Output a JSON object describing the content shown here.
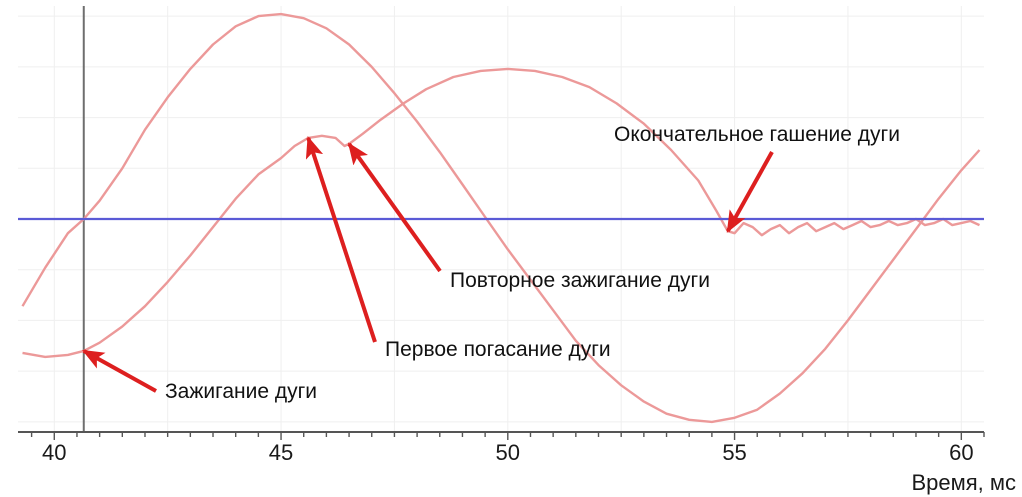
{
  "chart_data": {
    "type": "line",
    "xlabel": "Время, мс",
    "ylabel": "",
    "xlim": [
      39.2,
      60.5
    ],
    "ylim": [
      -1.05,
      1.05
    ],
    "xticks": [
      40,
      45,
      50,
      55,
      60
    ],
    "grid": true,
    "zero_line": {
      "y": 0,
      "color": "#5a5ad6"
    },
    "marker_line": {
      "x": 40.65,
      "color": "#6e6e6e"
    },
    "series": [
      {
        "color": "#ec9999",
        "points": [
          [
            39.3,
            -0.43
          ],
          [
            39.8,
            -0.24
          ],
          [
            40.3,
            -0.07
          ],
          [
            40.65,
            0.0
          ],
          [
            41.0,
            0.09
          ],
          [
            41.5,
            0.25
          ],
          [
            42.0,
            0.44
          ],
          [
            42.5,
            0.6
          ],
          [
            43.0,
            0.74
          ],
          [
            43.5,
            0.86
          ],
          [
            44.0,
            0.95
          ],
          [
            44.5,
            1.0
          ],
          [
            45.0,
            1.01
          ],
          [
            45.5,
            0.99
          ],
          [
            46.0,
            0.94
          ],
          [
            46.5,
            0.86
          ],
          [
            47.0,
            0.75
          ],
          [
            47.5,
            0.62
          ],
          [
            48.0,
            0.48
          ],
          [
            48.5,
            0.33
          ],
          [
            49.0,
            0.17
          ],
          [
            49.5,
            0.01
          ],
          [
            50.0,
            -0.15
          ],
          [
            50.5,
            -0.3
          ],
          [
            51.0,
            -0.45
          ],
          [
            51.5,
            -0.6
          ],
          [
            52.0,
            -0.72
          ],
          [
            52.5,
            -0.82
          ],
          [
            53.0,
            -0.9
          ],
          [
            53.5,
            -0.96
          ],
          [
            54.0,
            -0.99
          ],
          [
            54.5,
            -1.0
          ],
          [
            55.0,
            -0.98
          ],
          [
            55.5,
            -0.94
          ],
          [
            56.0,
            -0.86
          ],
          [
            56.5,
            -0.76
          ],
          [
            57.0,
            -0.64
          ],
          [
            57.5,
            -0.5
          ],
          [
            58.0,
            -0.35
          ],
          [
            58.5,
            -0.2
          ],
          [
            59.0,
            -0.05
          ],
          [
            59.5,
            0.1
          ],
          [
            60.0,
            0.24
          ],
          [
            60.4,
            0.34
          ]
        ]
      },
      {
        "color": "#ec9999",
        "points": [
          [
            39.3,
            -0.66
          ],
          [
            39.8,
            -0.68
          ],
          [
            40.3,
            -0.67
          ],
          [
            40.65,
            -0.65
          ],
          [
            41.0,
            -0.61
          ],
          [
            41.5,
            -0.53
          ],
          [
            42.0,
            -0.43
          ],
          [
            42.5,
            -0.31
          ],
          [
            43.0,
            -0.18
          ],
          [
            43.5,
            -0.04
          ],
          [
            44.0,
            0.1
          ],
          [
            44.5,
            0.22
          ],
          [
            45.0,
            0.3
          ],
          [
            45.3,
            0.36
          ],
          [
            45.6,
            0.4
          ],
          [
            45.9,
            0.41
          ],
          [
            46.2,
            0.4
          ],
          [
            46.4,
            0.36
          ],
          [
            46.5,
            0.37
          ],
          [
            46.8,
            0.42
          ],
          [
            47.2,
            0.49
          ],
          [
            47.7,
            0.57
          ],
          [
            48.2,
            0.64
          ],
          [
            48.8,
            0.7
          ],
          [
            49.4,
            0.73
          ],
          [
            50.0,
            0.74
          ],
          [
            50.6,
            0.73
          ],
          [
            51.2,
            0.7
          ],
          [
            51.8,
            0.65
          ],
          [
            52.4,
            0.57
          ],
          [
            53.0,
            0.47
          ],
          [
            53.6,
            0.34
          ],
          [
            54.2,
            0.19
          ],
          [
            54.6,
            0.04
          ],
          [
            54.85,
            -0.06
          ],
          [
            55.0,
            -0.07
          ],
          [
            55.2,
            -0.02
          ],
          [
            55.4,
            -0.04
          ],
          [
            55.6,
            -0.08
          ],
          [
            55.8,
            -0.05
          ],
          [
            56.0,
            -0.03
          ],
          [
            56.2,
            -0.07
          ],
          [
            56.4,
            -0.04
          ],
          [
            56.6,
            -0.02
          ],
          [
            56.8,
            -0.06
          ],
          [
            57.0,
            -0.04
          ],
          [
            57.2,
            -0.02
          ],
          [
            57.4,
            -0.05
          ],
          [
            57.6,
            -0.03
          ],
          [
            57.8,
            -0.01
          ],
          [
            58.0,
            -0.04
          ],
          [
            58.2,
            -0.03
          ],
          [
            58.4,
            -0.01
          ],
          [
            58.6,
            -0.03
          ],
          [
            58.8,
            -0.02
          ],
          [
            59.0,
            0.0
          ],
          [
            59.2,
            -0.03
          ],
          [
            59.4,
            -0.02
          ],
          [
            59.6,
            0.0
          ],
          [
            59.8,
            -0.03
          ],
          [
            60.0,
            -0.02
          ],
          [
            60.2,
            -0.01
          ],
          [
            60.4,
            -0.03
          ]
        ]
      }
    ],
    "annotations": [
      {
        "text": "Зажигание дуги",
        "point": [
          40.65,
          -0.65
        ]
      },
      {
        "text": "Первое погасание дуги",
        "point": [
          45.6,
          0.4
        ]
      },
      {
        "text": "Повторное зажигание дуги",
        "point": [
          46.5,
          0.37
        ]
      },
      {
        "text": "Окончательное гашение дуги",
        "point": [
          54.85,
          -0.06
        ]
      }
    ],
    "annotation_color": "#dd1f1f"
  }
}
